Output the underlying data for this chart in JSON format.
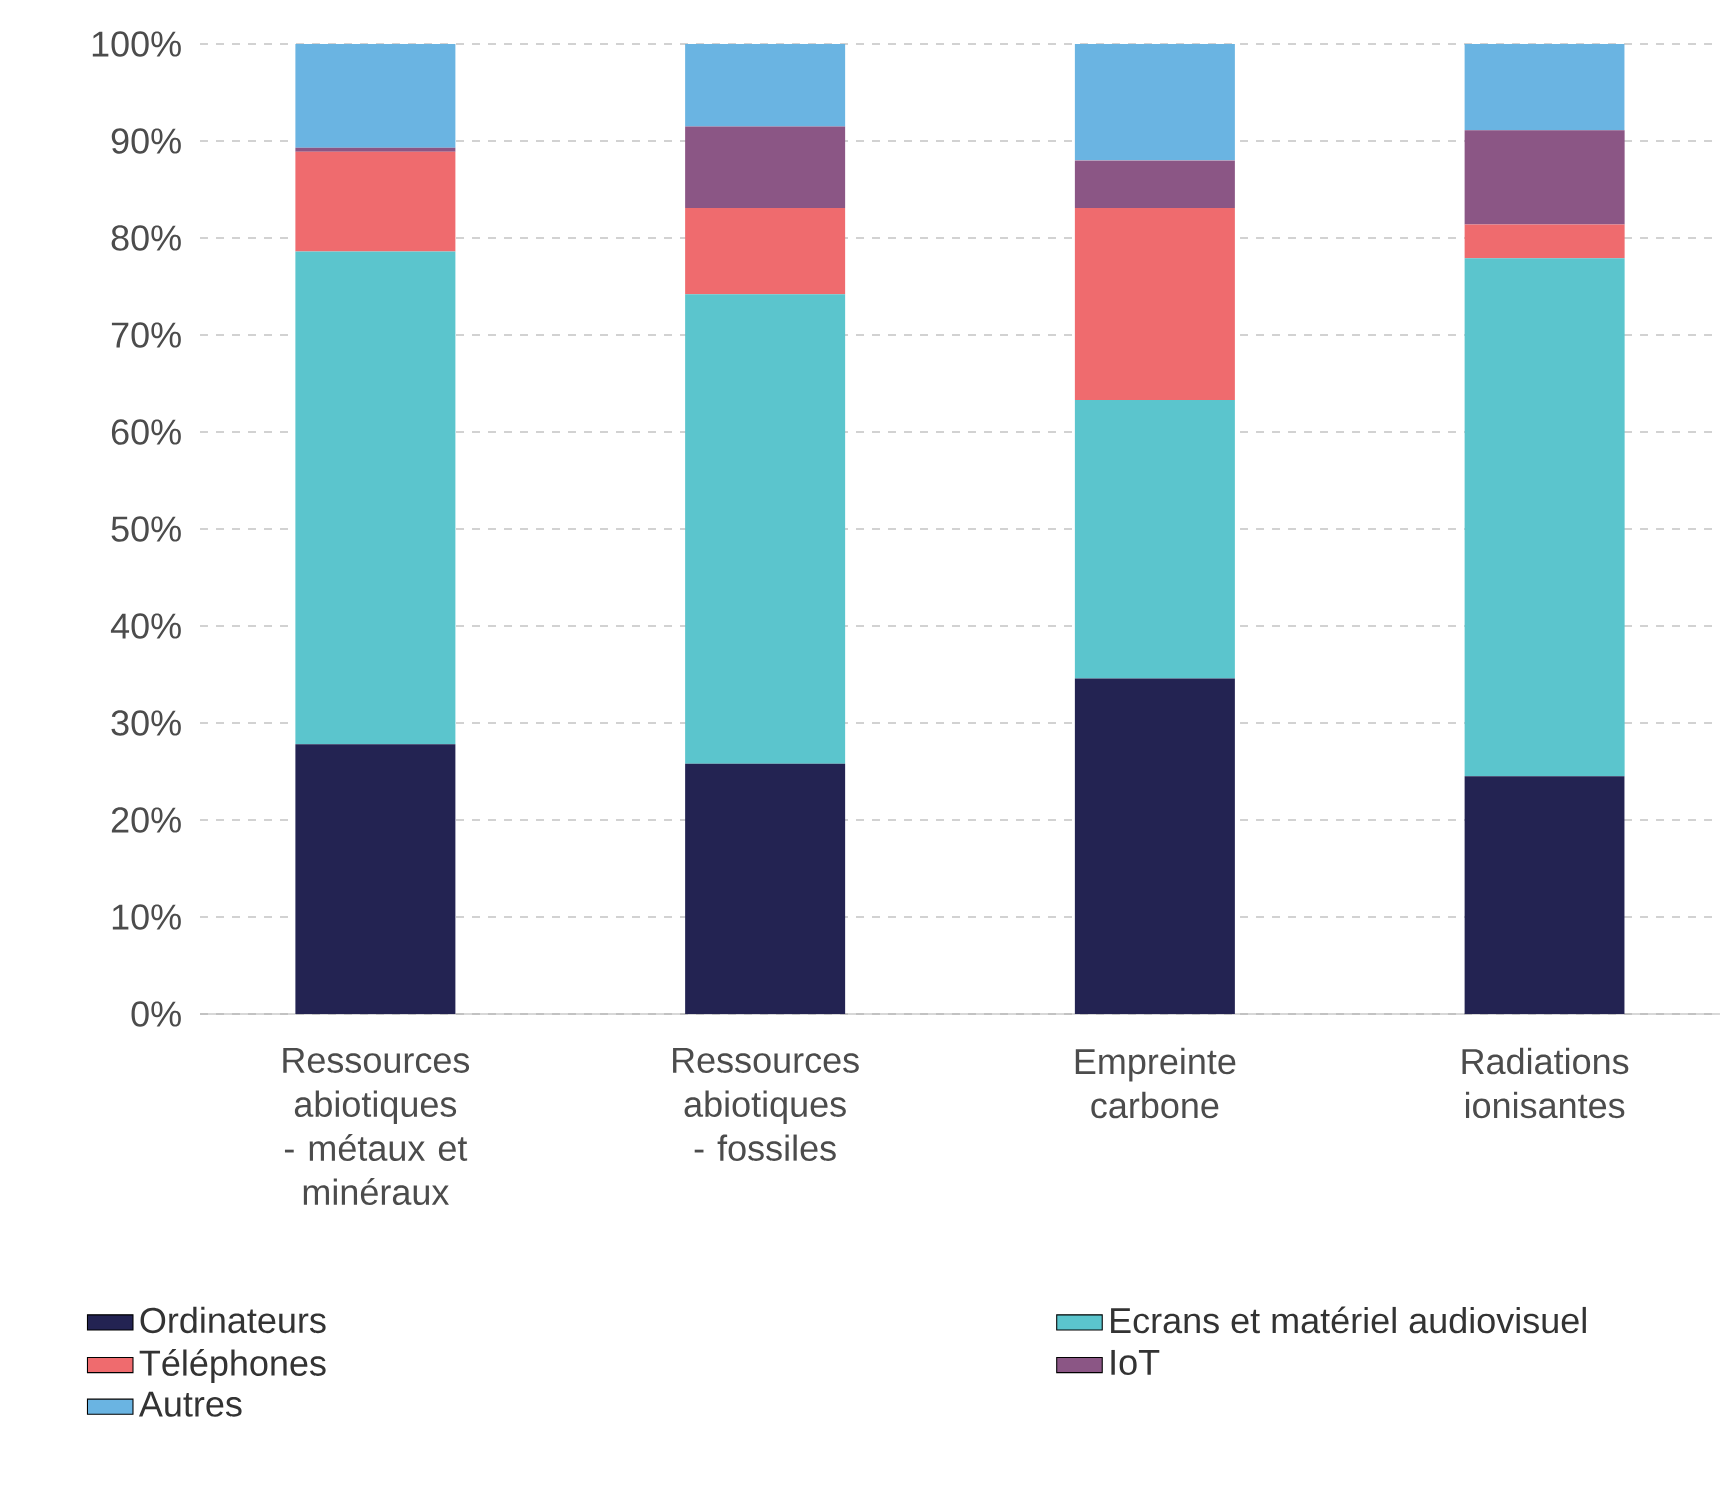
{
  "chart_data": {
    "type": "bar",
    "stacked": true,
    "categories": [
      "Ressources abiotiques - métaux et minéraux",
      "Ressources abiotiques - fossiles",
      "Empreinte carbone",
      "Radiations ionisantes"
    ],
    "series": [
      {
        "name": "Ordinateurs",
        "color": "#232352",
        "values": [
          27.8,
          25.8,
          34.6,
          24.5
        ]
      },
      {
        "name": "Ecrans et matériel audiovisuel",
        "color": "#5bc5cd",
        "values": [
          50.8,
          48.4,
          28.7,
          53.4
        ]
      },
      {
        "name": "Téléphones",
        "color": "#ef6b6e",
        "values": [
          10.3,
          8.9,
          19.8,
          3.5
        ]
      },
      {
        "name": "IoT",
        "color": "#8b5685",
        "values": [
          0.4,
          8.4,
          4.9,
          9.7
        ]
      },
      {
        "name": "Autres",
        "color": "#6ab4e2",
        "values": [
          10.7,
          8.5,
          12.0,
          8.9
        ]
      }
    ],
    "ylim": [
      0,
      100
    ],
    "yticks": [
      {
        "value": 0,
        "label": "0%"
      },
      {
        "value": 10,
        "label": "10%"
      },
      {
        "value": 20,
        "label": "20%"
      },
      {
        "value": 30,
        "label": "30%"
      },
      {
        "value": 40,
        "label": "40%"
      },
      {
        "value": 50,
        "label": "50%"
      },
      {
        "value": 60,
        "label": "60%"
      },
      {
        "value": 70,
        "label": "70%"
      },
      {
        "value": 80,
        "label": "80%"
      },
      {
        "value": 90,
        "label": "90%"
      },
      {
        "value": 100,
        "label": "100%"
      }
    ],
    "grid": "y",
    "legend": "bottom"
  }
}
